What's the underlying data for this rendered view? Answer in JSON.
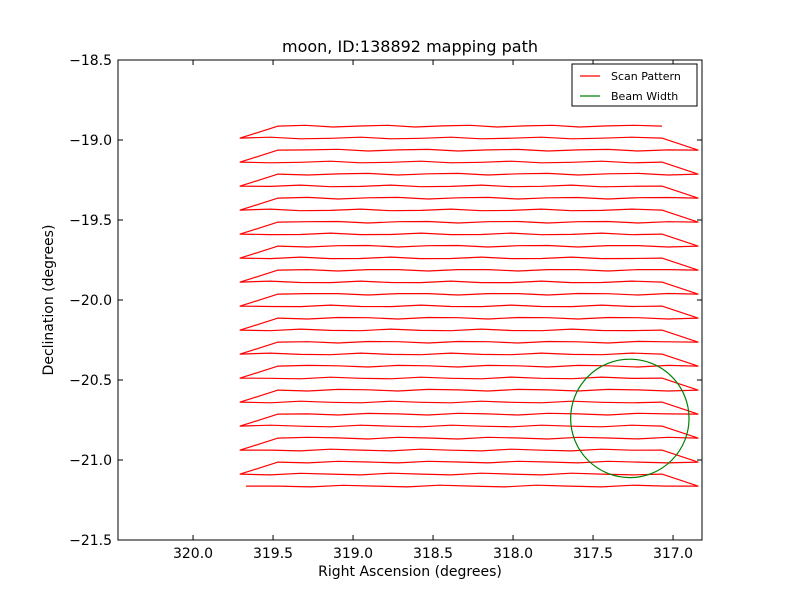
{
  "chart_data": {
    "type": "line",
    "title": "moon, ID:138892 mapping path",
    "xlabel": "Right Ascension (degrees)",
    "ylabel": "Declination (degrees)",
    "xlim": [
      320.469,
      316.819
    ],
    "ylim": [
      -21.5,
      -18.5
    ],
    "x_inverted": true,
    "grid": false,
    "legend_placement": "top-right",
    "xticks": [
      320.0,
      319.5,
      319.0,
      318.5,
      318.0,
      317.5,
      317.0
    ],
    "xtick_labels": [
      "320.0",
      "319.5",
      "319.0",
      "318.5",
      "318.0",
      "317.5",
      "317.0"
    ],
    "yticks": [
      -18.5,
      -19.0,
      -19.5,
      -20.0,
      -20.5,
      -21.0,
      -21.5
    ],
    "ytick_labels": [
      "−18.5",
      "−19.0",
      "−19.5",
      "−20.0",
      "−20.5",
      "−21.0",
      "−21.5"
    ],
    "series": [
      {
        "name": "Scan Pattern",
        "color": "#ff0000",
        "kind": "scan",
        "left_outer_ra": 319.706,
        "left_inner_ra": 319.469,
        "right_outer_ra": 316.844,
        "right_inner_ra": 317.069,
        "start_ra": 319.669,
        "end_ra": 317.044,
        "row_dec": [
          -21.163,
          -21.088,
          -21.013,
          -20.938,
          -20.863,
          -20.788,
          -20.713,
          -20.638,
          -20.563,
          -20.488,
          -20.413,
          -20.338,
          -20.263,
          -20.188,
          -20.113,
          -20.038,
          -19.963,
          -19.888,
          -19.813,
          -19.738,
          -19.663,
          -19.588,
          -19.513,
          -19.438,
          -19.363,
          -19.288,
          -19.213,
          -19.138,
          -19.063,
          -18.988,
          -18.913
        ]
      },
      {
        "name": "Beam Width",
        "color": "#008000",
        "kind": "circle",
        "center_ra": 317.27,
        "center_dec": -20.74,
        "radius_deg": 0.37
      }
    ]
  }
}
